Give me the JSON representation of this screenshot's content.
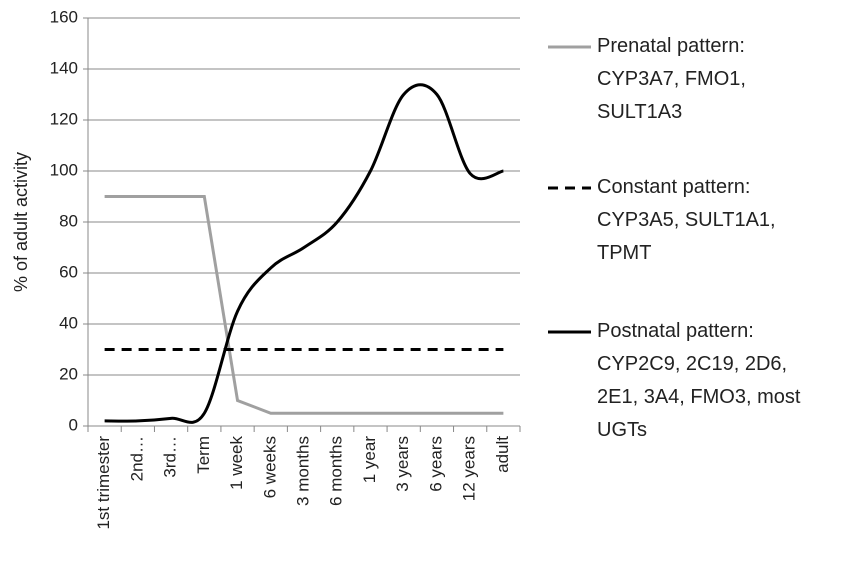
{
  "chart_data": {
    "type": "line",
    "y_label": "% of adult activity",
    "categories": [
      "1st trimester",
      "2nd…",
      "3rd…",
      "Term",
      "1 week",
      "6 weeks",
      "3 months",
      "6 months",
      "1 year",
      "3 years",
      "6 years",
      "12 years",
      "adult"
    ],
    "series": [
      {
        "name": "Prenatal pattern:\nCYP3A7, FMO1,\nSULT1A3",
        "color": "#a0a0a0",
        "style": "solid",
        "smooth": false,
        "values": [
          90,
          90,
          90,
          90,
          10,
          5,
          5,
          5,
          5,
          5,
          5,
          5,
          5
        ]
      },
      {
        "name": "Constant pattern:\nCYP3A5, SULT1A1,\nTPMT",
        "color": "#000000",
        "style": "dashed",
        "smooth": false,
        "values": [
          30,
          30,
          30,
          30,
          30,
          30,
          30,
          30,
          30,
          30,
          30,
          30,
          30
        ]
      },
      {
        "name": "Postnatal pattern:\nCYP2C9, 2C19, 2D6,\n2E1, 3A4, FMO3, most\nUGTs",
        "color": "#000000",
        "style": "solid",
        "smooth": true,
        "values": [
          2,
          2,
          3,
          5,
          45,
          62,
          70,
          80,
          100,
          130,
          130,
          99,
          100
        ]
      }
    ],
    "ylim": [
      0,
      160
    ],
    "yticks": [
      0,
      20,
      40,
      60,
      80,
      100,
      120,
      140,
      160
    ],
    "grid": true
  }
}
